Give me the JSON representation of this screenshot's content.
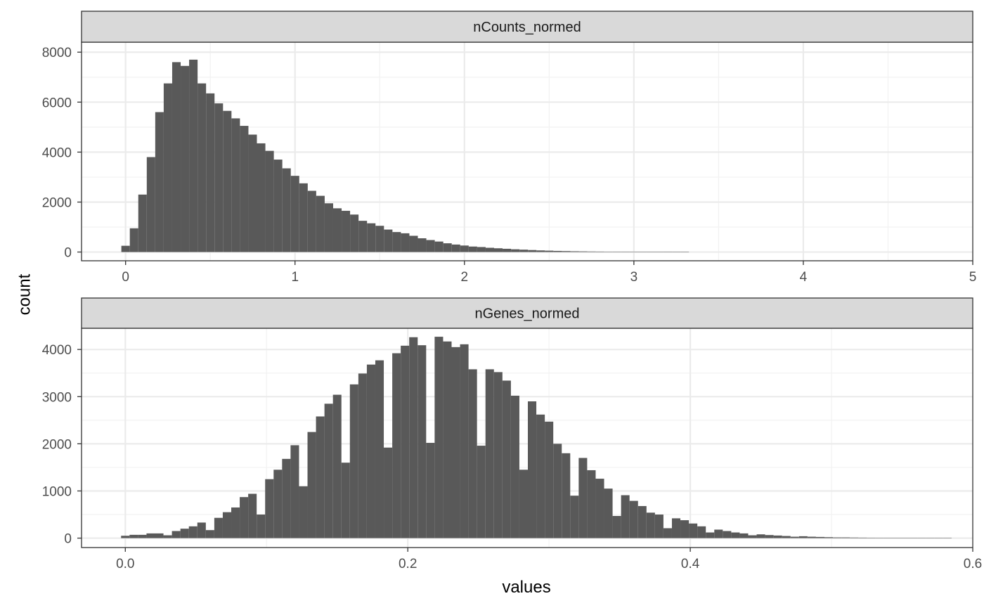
{
  "chart_data": {
    "type": "histogram",
    "facet_layout": "vertical, independent x scales",
    "xlabel": "values",
    "ylabel": "count",
    "grid": true,
    "bar_color": "#595959",
    "panels": [
      {
        "strip_label": "nCounts_normed",
        "xlim": [
          -0.26,
          5.0
        ],
        "ylim": [
          -350,
          8400
        ],
        "x_ticks": [
          0,
          1,
          2,
          3,
          4,
          5
        ],
        "x_tick_labels": [
          "0",
          "1",
          "2",
          "3",
          "4",
          "5"
        ],
        "y_ticks": [
          0,
          2000,
          4000,
          6000,
          8000
        ],
        "y_tick_labels": [
          "0",
          "2000",
          "4000",
          "6000",
          "8000"
        ],
        "bin_start": -0.025,
        "bin_width": 0.05,
        "counts": [
          250,
          950,
          2300,
          3800,
          5600,
          6750,
          7600,
          7450,
          7700,
          6750,
          6350,
          5950,
          5650,
          5350,
          5050,
          4700,
          4350,
          4050,
          3700,
          3350,
          3050,
          2750,
          2450,
          2250,
          1950,
          1750,
          1650,
          1500,
          1250,
          1150,
          1050,
          900,
          800,
          750,
          650,
          550,
          480,
          420,
          350,
          300,
          260,
          220,
          200,
          170,
          150,
          130,
          110,
          95,
          80,
          65,
          55,
          45,
          38,
          30,
          25,
          20,
          17,
          14,
          12,
          10,
          8,
          7,
          6,
          5,
          4,
          3,
          2
        ]
      },
      {
        "strip_label": "nGenes_normed",
        "xlim": [
          -0.031,
          0.6
        ],
        "ylim": [
          -200,
          4450
        ],
        "x_ticks": [
          0.0,
          0.2,
          0.4,
          0.6
        ],
        "x_tick_labels": [
          "0.0",
          "0.2",
          "0.4",
          "0.6"
        ],
        "y_ticks": [
          0,
          1000,
          2000,
          3000,
          4000
        ],
        "y_tick_labels": [
          "0",
          "1000",
          "2000",
          "3000",
          "4000"
        ],
        "bin_start": -0.003,
        "bin_width": 0.006,
        "counts": [
          50,
          70,
          70,
          100,
          100,
          60,
          150,
          200,
          250,
          330,
          170,
          430,
          550,
          650,
          870,
          940,
          500,
          1250,
          1450,
          1680,
          1970,
          1100,
          2250,
          2580,
          2850,
          3040,
          1600,
          3260,
          3490,
          3680,
          3770,
          1920,
          3920,
          4080,
          4260,
          4090,
          2020,
          4270,
          4170,
          4050,
          4110,
          3580,
          1960,
          3580,
          3520,
          3340,
          3020,
          1450,
          2900,
          2620,
          2470,
          2000,
          1800,
          900,
          1700,
          1440,
          1260,
          1050,
          470,
          910,
          790,
          680,
          540,
          500,
          210,
          420,
          380,
          310,
          250,
          120,
          180,
          150,
          120,
          100,
          60,
          80,
          65,
          55,
          45,
          30,
          40,
          30,
          25,
          20,
          15,
          15,
          12,
          10,
          8,
          6,
          6,
          5,
          4,
          3,
          3,
          2,
          2,
          2
        ]
      }
    ]
  }
}
